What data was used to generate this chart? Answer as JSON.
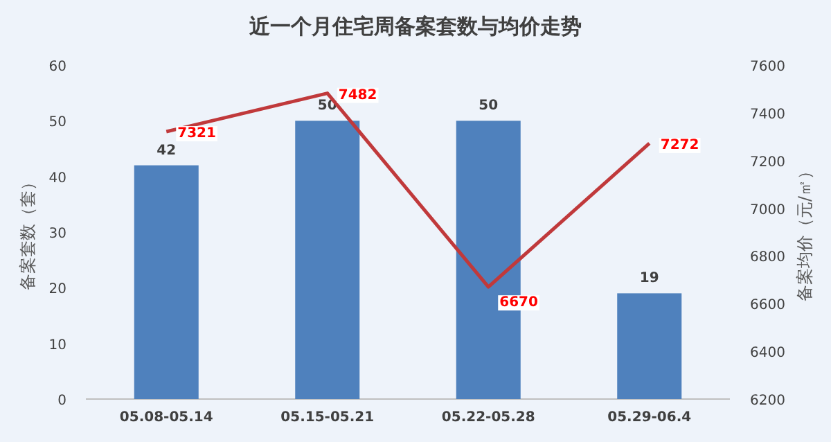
{
  "chart_data": {
    "type": "bar",
    "title": "近一个月住宅周备案套数与均价走势",
    "ylabel": "备案套数（套）",
    "y2label": "备案均价（元/㎡）",
    "categories": [
      "05.08-05.14",
      "05.15-05.21",
      "05.22-05.28",
      "05.29-06.4"
    ],
    "ylim": [
      0,
      60
    ],
    "yticks": [
      0,
      10,
      20,
      30,
      40,
      50,
      60
    ],
    "y2lim": [
      6200,
      7600
    ],
    "y2ticks": [
      6200,
      6400,
      6600,
      6800,
      7000,
      7200,
      7400,
      7600
    ],
    "grid": false,
    "data_labels": true,
    "series": [
      {
        "color": "#4f81bd",
        "values": [
          42,
          50,
          50,
          19
        ]
      },
      {
        "type": "line",
        "axis": "y2",
        "color": "#c0393b",
        "values": [
          7321,
          7482,
          6670,
          7272
        ]
      }
    ]
  }
}
